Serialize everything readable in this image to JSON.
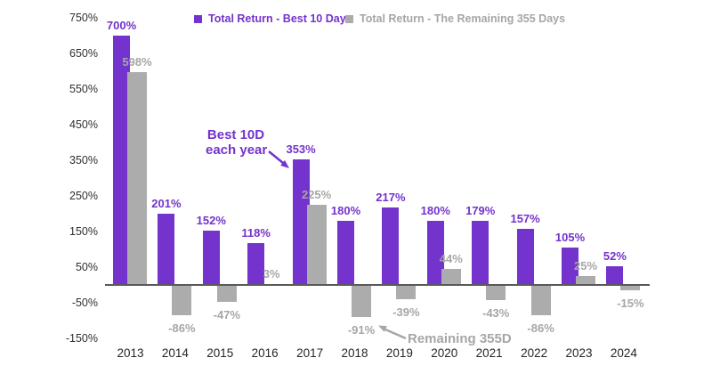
{
  "legend": {
    "items": [
      {
        "label": "Total Return - Best 10 Days"
      },
      {
        "label": "Total Return - The Remaining 355 Days"
      }
    ]
  },
  "colors": {
    "best10": "#7433CC",
    "remaining_bar": "#ACACAC",
    "remaining_text": "#A6A6A6",
    "axis_line": "#595959",
    "tick_text": "#303030",
    "year_text": "#262626"
  },
  "annotations": {
    "best10d": {
      "line1": "Best 10D",
      "line2": "each year"
    },
    "remaining": {
      "text": "Remaining 355D"
    }
  },
  "chart_data": {
    "type": "bar",
    "categories": [
      "2013",
      "2014",
      "2015",
      "2016",
      "2017",
      "2018",
      "2019",
      "2020",
      "2021",
      "2022",
      "2023",
      "2024"
    ],
    "series": [
      {
        "name": "Total Return - Best 10 Days",
        "values": [
          700,
          201,
          152,
          118,
          353,
          180,
          217,
          180,
          179,
          157,
          105,
          52
        ]
      },
      {
        "name": "Total Return - The Remaining 355 Days",
        "values": [
          598,
          -86,
          -47,
          3,
          225,
          -91,
          -39,
          44,
          -43,
          -86,
          25,
          -15
        ]
      }
    ],
    "value_suffix": "%",
    "ylim": [
      -150,
      750
    ],
    "ytick_step": 100,
    "ytick_suffix": "%",
    "grid": false,
    "legend_position": "top"
  }
}
